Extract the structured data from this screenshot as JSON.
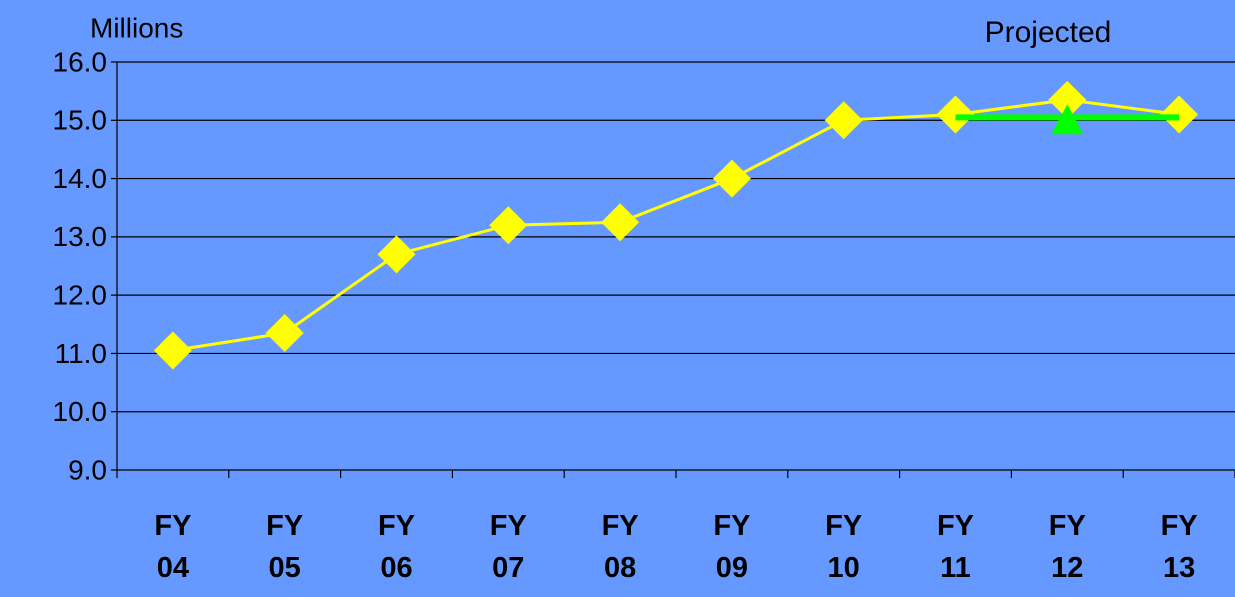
{
  "chart_data": {
    "type": "line",
    "y_label": "Millions",
    "annotation": "Projected",
    "categories": [
      "FY 04",
      "FY 05",
      "FY 06",
      "FY 07",
      "FY 08",
      "FY 09",
      "FY 10",
      "FY 11",
      "FY 12",
      "FY 13"
    ],
    "series": [
      {
        "color": "#ffff00",
        "marker": "diamond",
        "values": [
          11.05,
          11.35,
          12.7,
          13.2,
          13.25,
          14.0,
          15.0,
          15.1,
          15.35,
          15.1
        ]
      },
      {
        "color": "#00ff00",
        "marker": "none",
        "values": [
          null,
          null,
          null,
          null,
          null,
          null,
          null,
          15.05,
          15.05,
          15.05
        ]
      },
      {
        "color": "#00ff00",
        "marker": "triangle",
        "values": [
          null,
          null,
          null,
          null,
          null,
          null,
          null,
          null,
          15.0,
          null
        ]
      }
    ],
    "ylim": [
      9,
      16
    ],
    "yticks": [
      {
        "value": 9,
        "label": "9.0"
      },
      {
        "value": 10,
        "label": "10.0"
      },
      {
        "value": 11,
        "label": "11.0"
      },
      {
        "value": 12,
        "label": "12.0"
      },
      {
        "value": 13,
        "label": "13.0"
      },
      {
        "value": 14,
        "label": "14.0"
      },
      {
        "value": 15,
        "label": "15.0"
      },
      {
        "value": 16,
        "label": "16.0"
      }
    ],
    "grid": true
  }
}
